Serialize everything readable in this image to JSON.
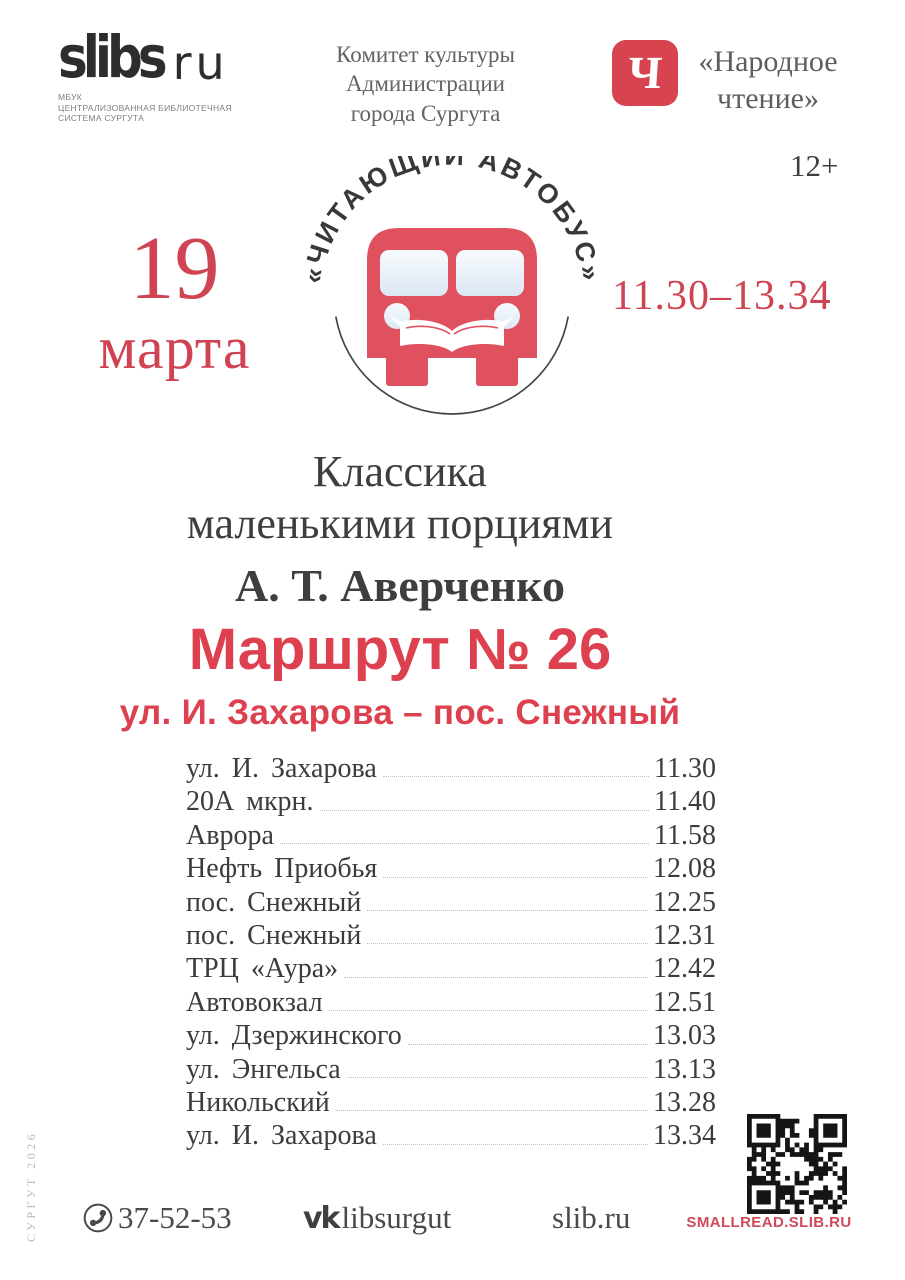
{
  "header": {
    "library": {
      "logo_main": "slibs",
      "logo_suffix": "ru",
      "caption_lines": [
        "МБУК",
        "ЦЕНТРАЛИЗОВАННАЯ БИБЛИОТЕЧНАЯ",
        "СИСТЕМА СУРГУТА"
      ]
    },
    "committee_lines": [
      "Комитет культуры",
      "Администрации",
      "города Сургута"
    ],
    "narodnoe": {
      "logo_letter": "Ч",
      "line1": "«Народное",
      "line2": "чтение»"
    }
  },
  "age_rating": "12+",
  "date": {
    "day": "19",
    "month": "марта"
  },
  "time_range": "11.30–13.34",
  "emblem": {
    "arc_text": "«ЧИТАЮЩИЙ АВТОБУС»"
  },
  "title": {
    "line1": "Классика",
    "line2": "маленькими порциями",
    "author": "А. Т. Аверченко"
  },
  "route": {
    "heading": "Маршрут № 26",
    "subheading": "ул. И. Захарова – пос. Снежный"
  },
  "schedule": [
    {
      "stop": "ул. И. Захарова",
      "time": "11.30"
    },
    {
      "stop": "20А мкрн.",
      "time": "11.40"
    },
    {
      "stop": "Аврора",
      "time": "11.58"
    },
    {
      "stop": "Нефть Приобья",
      "time": "12.08"
    },
    {
      "stop": "пос. Снежный",
      "time": "12.25"
    },
    {
      "stop": "пос. Снежный",
      "time": "12.31"
    },
    {
      "stop": "ТРЦ «Аура»",
      "time": "12.42"
    },
    {
      "stop": "Автовокзал",
      "time": "12.51"
    },
    {
      "stop": "ул. Дзержинского",
      "time": "13.03"
    },
    {
      "stop": "ул. Энгельса",
      "time": "13.13"
    },
    {
      "stop": "Никольский",
      "time": "13.28"
    },
    {
      "stop": "ул. И. Захарова",
      "time": "13.34"
    }
  ],
  "footer": {
    "phone": "37-52-53",
    "vk_mark": "vk",
    "vk_account": "libsurgut",
    "site": "slib.ru",
    "qr_caption": "SMALLREAD.SLIB.RU"
  },
  "side_note": "СУРГУТ 2026",
  "colors": {
    "red_text": "#cf4353",
    "bus_red": "#e05160",
    "route_red": "#dd4150",
    "badge_red": "#d7434f",
    "qr_caption_red": "#d04a59",
    "dark_text": "#3c3c3c",
    "gray_text": "#636363",
    "light_gray": "#b9b9b9"
  }
}
